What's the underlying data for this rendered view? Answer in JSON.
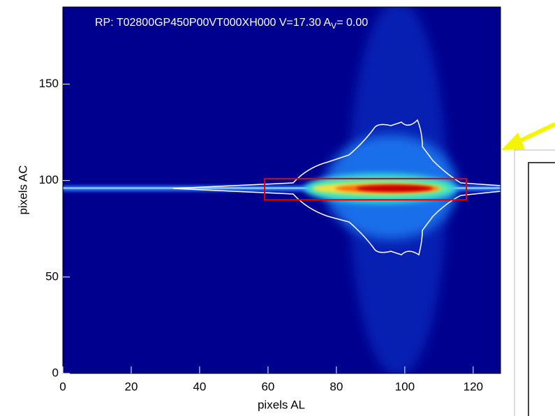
{
  "chart_data": {
    "type": "heatmap",
    "title": "RP: T02800GP450P00VT000XH000   V=17.30  A",
    "title_subscript": "V",
    "title_suffix": "= 0.00",
    "x_label": "pixels AL",
    "y_label": "pixels AC",
    "xlim": [
      0,
      128
    ],
    "ylim": [
      0,
      190
    ],
    "xticks": [
      0,
      20,
      40,
      60,
      80,
      100,
      120
    ],
    "yticks": [
      0,
      50,
      100,
      150
    ],
    "highlight_box": {
      "x": [
        59,
        118
      ],
      "y": [
        90,
        101
      ],
      "color": "#e00000"
    }
  }
}
